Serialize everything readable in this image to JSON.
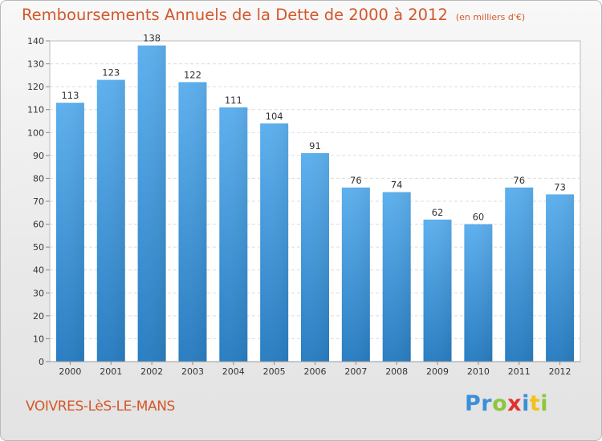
{
  "header": {
    "title": "Remboursements Annuels de la Dette de 2000 à 2012",
    "unit_note": "(en milliers d'€)"
  },
  "footer": {
    "commune": "VOIVRES-LèS-LE-MANS",
    "logo": {
      "p1": "Pr",
      "o": "o",
      "x": "x",
      "i": "i",
      "t": "t",
      "i2": "i"
    }
  },
  "colors": {
    "accent": "#d4572a",
    "bar": "#4aa0e0",
    "bar_dark": "#2a7fc4"
  },
  "chart_data": {
    "type": "bar",
    "title": "Remboursements Annuels de la Dette de 2000 à 2012",
    "ylabel": "en milliers d'€",
    "xlabel": "",
    "categories": [
      "2000",
      "2001",
      "2002",
      "2003",
      "2004",
      "2005",
      "2006",
      "2007",
      "2008",
      "2009",
      "2010",
      "2011",
      "2012"
    ],
    "values": [
      113,
      123,
      138,
      122,
      111,
      104,
      91,
      76,
      74,
      62,
      60,
      76,
      73
    ],
    "ylim": [
      0,
      140
    ],
    "yticks": [
      0,
      10,
      20,
      30,
      40,
      50,
      60,
      70,
      80,
      90,
      100,
      110,
      120,
      130,
      140
    ],
    "grid": true
  }
}
